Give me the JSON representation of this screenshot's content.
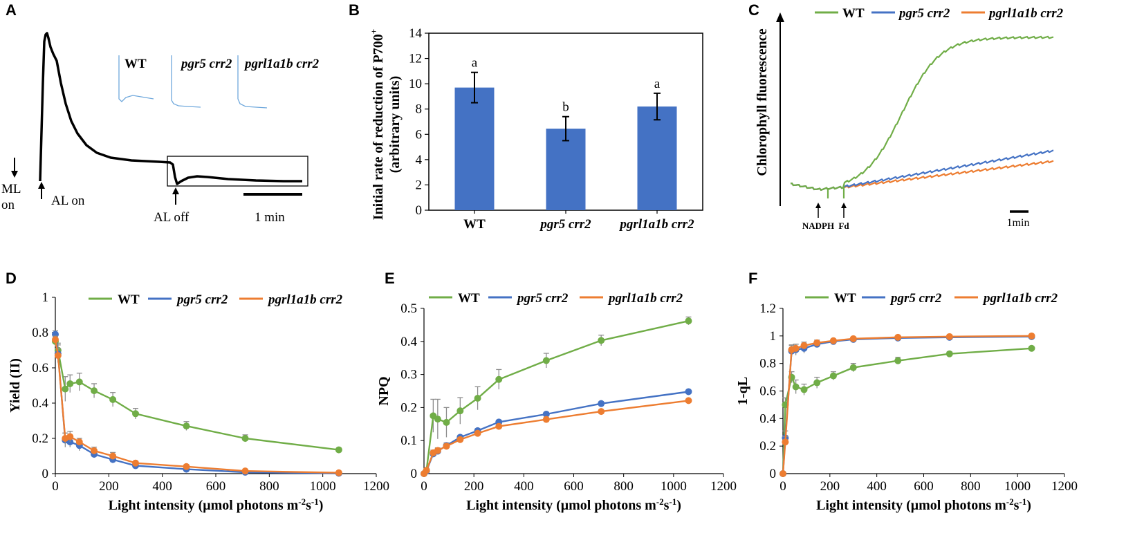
{
  "colors": {
    "wt": "#70AD47",
    "pgr5": "#4472C4",
    "pgrl": "#ED7D31",
    "bar": "#4472C4",
    "inset": "#6FA8DC"
  },
  "panel_labels": {
    "a": "A",
    "b": "B",
    "c": "C",
    "d": "D",
    "e": "E",
    "f": "F"
  },
  "panel_a": {
    "ml_on_1": "ML",
    "ml_on_2": "on",
    "al_on": "AL on",
    "al_off": "AL off",
    "scale": "1 min",
    "insets": [
      "WT",
      "pgr5 crr2",
      "pgrl1a1b crr2"
    ]
  },
  "panel_c": {
    "ylabel": "Chlorophyll fluorescence",
    "nadph": "NADPH",
    "fd": "Fd",
    "scale": "1min",
    "legend": [
      "WT",
      "pgr5 crr2",
      "pgrl1a1b crr2"
    ]
  },
  "chart_data": [
    {
      "id": "B",
      "type": "bar",
      "categories": [
        "WT",
        "pgr5 crr2",
        "pgrl1a1b crr2"
      ],
      "values": [
        9.7,
        6.45,
        8.2
      ],
      "errors": [
        1.2,
        0.95,
        1.05
      ],
      "letters": [
        "a",
        "b",
        "a"
      ],
      "ylabel_line1": "Initial rate of reduction of P700",
      "ylabel_sup": "+",
      "ylabel_line2": "(arbitrary units)",
      "ylim": [
        0,
        14
      ],
      "yticks": [
        "0",
        "2",
        "4",
        "6",
        "8",
        "10",
        "12",
        "14"
      ]
    },
    {
      "id": "D",
      "type": "line",
      "xlabel": "Light intensity (μmol photons m",
      "xlabel_sup1": "-2",
      "xlabel_mid": "s",
      "xlabel_sup2": "-1",
      "xlabel_end": ")",
      "ylabel": "Yield (II)",
      "xlim": [
        0,
        1200
      ],
      "ylim": [
        0,
        1
      ],
      "xticks": [
        "0",
        "200",
        "400",
        "600",
        "800",
        "1000",
        "1200"
      ],
      "yticks": [
        "0",
        "0.2",
        "0.4",
        "0.6",
        "0.8",
        "1"
      ],
      "x": [
        0,
        10,
        37,
        55,
        90,
        145,
        215,
        300,
        490,
        710,
        1060
      ],
      "series": [
        {
          "name": "WT",
          "values": [
            0.75,
            0.7,
            0.48,
            0.51,
            0.52,
            0.47,
            0.42,
            0.34,
            0.27,
            0.2,
            0.135
          ],
          "errors": [
            0.03,
            0.04,
            0.07,
            0.05,
            0.05,
            0.04,
            0.04,
            0.03,
            0.025,
            0.02,
            0.01
          ]
        },
        {
          "name": "pgr5 crr2",
          "values": [
            0.79,
            0.68,
            0.19,
            0.18,
            0.16,
            0.11,
            0.08,
            0.045,
            0.025,
            0.008,
            0.002
          ],
          "errors": [
            0.02,
            0.05,
            0.04,
            0.03,
            0.03,
            0.02,
            0.02,
            0.01,
            0.01,
            0.005,
            0.002
          ]
        },
        {
          "name": "pgrl1a1b crr2",
          "values": [
            0.76,
            0.67,
            0.2,
            0.21,
            0.18,
            0.13,
            0.1,
            0.06,
            0.04,
            0.015,
            0.005
          ],
          "errors": [
            0.02,
            0.04,
            0.03,
            0.03,
            0.02,
            0.02,
            0.02,
            0.01,
            0.01,
            0.005,
            0.002
          ]
        }
      ]
    },
    {
      "id": "E",
      "type": "line",
      "xlabel": "Light intensity (μmol photons m",
      "xlabel_sup1": "-2",
      "xlabel_mid": "s",
      "xlabel_sup2": "-1",
      "xlabel_end": ")",
      "ylabel": "NPQ",
      "xlim": [
        0,
        1200
      ],
      "ylim": [
        0,
        0.5
      ],
      "xticks": [
        "0",
        "200",
        "400",
        "600",
        "800",
        "1000",
        "1200"
      ],
      "yticks": [
        "0",
        "0.1",
        "0.2",
        "0.3",
        "0.4",
        "0.5"
      ],
      "x": [
        0,
        10,
        37,
        55,
        90,
        145,
        215,
        300,
        490,
        710,
        1060
      ],
      "series": [
        {
          "name": "WT",
          "values": [
            0.0,
            0.01,
            0.175,
            0.165,
            0.155,
            0.19,
            0.228,
            0.285,
            0.342,
            0.403,
            0.462
          ],
          "errors": [
            0.002,
            0.005,
            0.05,
            0.06,
            0.045,
            0.04,
            0.035,
            0.03,
            0.022,
            0.016,
            0.012
          ]
        },
        {
          "name": "pgr5 crr2",
          "values": [
            0.0,
            0.008,
            0.06,
            0.068,
            0.085,
            0.11,
            0.13,
            0.156,
            0.18,
            0.212,
            0.248
          ],
          "errors": [
            0.002,
            0.004,
            0.008,
            0.008,
            0.008,
            0.006,
            0.006,
            0.006,
            0.005,
            0.004,
            0.004
          ]
        },
        {
          "name": "pgrl1a1b crr2",
          "values": [
            0.0,
            0.01,
            0.063,
            0.07,
            0.083,
            0.103,
            0.122,
            0.143,
            0.164,
            0.188,
            0.221
          ],
          "errors": [
            0.002,
            0.004,
            0.008,
            0.008,
            0.008,
            0.006,
            0.006,
            0.006,
            0.005,
            0.004,
            0.004
          ]
        }
      ]
    },
    {
      "id": "F",
      "type": "line",
      "xlabel": "Light intensity (μmol photons m",
      "xlabel_sup1": "-2",
      "xlabel_mid": "s",
      "xlabel_sup2": "-1",
      "xlabel_end": ")",
      "ylabel": "1-qL",
      "xlim": [
        0,
        1200
      ],
      "ylim": [
        0,
        1.2
      ],
      "xticks": [
        "0",
        "200",
        "400",
        "600",
        "800",
        "1000",
        "1200"
      ],
      "yticks": [
        "0",
        "0.2",
        "0.4",
        "0.6",
        "0.8",
        "1",
        "1.2"
      ],
      "x": [
        0,
        10,
        37,
        55,
        90,
        145,
        215,
        300,
        490,
        710,
        1060
      ],
      "series": [
        {
          "name": "WT",
          "values": [
            0.0,
            0.5,
            0.7,
            0.63,
            0.61,
            0.66,
            0.71,
            0.77,
            0.82,
            0.87,
            0.91
          ],
          "errors": [
            0.01,
            0.05,
            0.04,
            0.05,
            0.04,
            0.04,
            0.03,
            0.03,
            0.025,
            0.015,
            0.01
          ]
        },
        {
          "name": "pgr5 crr2",
          "values": [
            0.0,
            0.26,
            0.89,
            0.9,
            0.91,
            0.94,
            0.96,
            0.975,
            0.985,
            0.99,
            0.995
          ],
          "errors": [
            0.01,
            0.05,
            0.04,
            0.04,
            0.035,
            0.02,
            0.015,
            0.01,
            0.008,
            0.005,
            0.003
          ]
        },
        {
          "name": "pgrl1a1b crr2",
          "values": [
            0.0,
            0.23,
            0.9,
            0.91,
            0.93,
            0.95,
            0.965,
            0.98,
            0.99,
            0.995,
            1.0
          ],
          "errors": [
            0.01,
            0.04,
            0.035,
            0.03,
            0.025,
            0.02,
            0.012,
            0.008,
            0.006,
            0.004,
            0.003
          ]
        }
      ]
    }
  ]
}
